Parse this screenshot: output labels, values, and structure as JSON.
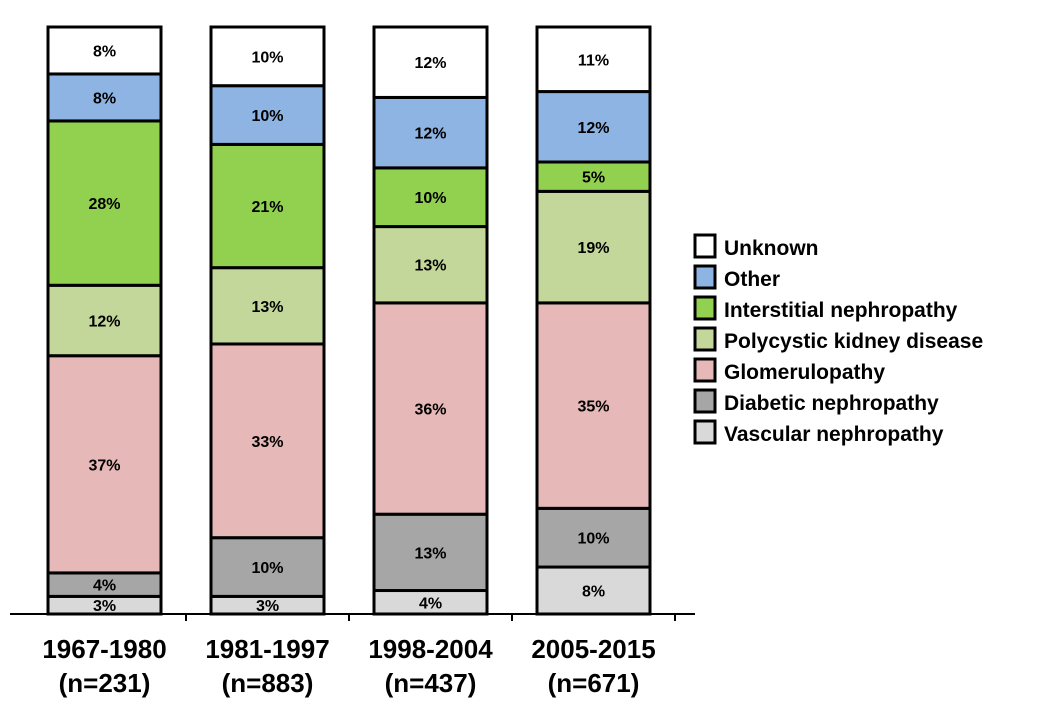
{
  "chart_data": {
    "type": "bar",
    "stacked": true,
    "title": "",
    "xlabel": "",
    "ylabel": "",
    "ylim": [
      0,
      100
    ],
    "grid": false,
    "legend_position": "right",
    "categories": [
      {
        "period": "1967-1980",
        "n": "(n=231)"
      },
      {
        "period": "1981-1997",
        "n": "(n=883)"
      },
      {
        "period": "1998-2004",
        "n": "(n=437)"
      },
      {
        "period": "2005-2015",
        "n": "(n=671)"
      }
    ],
    "series": [
      {
        "name": "Vascular nephropathy",
        "color": "#d9d9d9",
        "values": [
          3,
          3,
          4,
          8
        ]
      },
      {
        "name": "Diabetic nephropathy",
        "color": "#a6a6a6",
        "values": [
          4,
          10,
          13,
          10
        ]
      },
      {
        "name": "Glomerulopathy",
        "color": "#e6b8b7",
        "values": [
          37,
          33,
          36,
          35
        ]
      },
      {
        "name": "Polycystic kidney disease",
        "color": "#c4d79b",
        "values": [
          12,
          13,
          13,
          19
        ]
      },
      {
        "name": "Interstitial nephropathy",
        "color": "#92d050",
        "values": [
          28,
          21,
          10,
          5
        ]
      },
      {
        "name": "Other",
        "color": "#8db4e2",
        "values": [
          8,
          10,
          12,
          12
        ]
      },
      {
        "name": "Unknown",
        "color": "#ffffff",
        "values": [
          8,
          10,
          12,
          11
        ]
      }
    ],
    "value_suffix": "%"
  }
}
